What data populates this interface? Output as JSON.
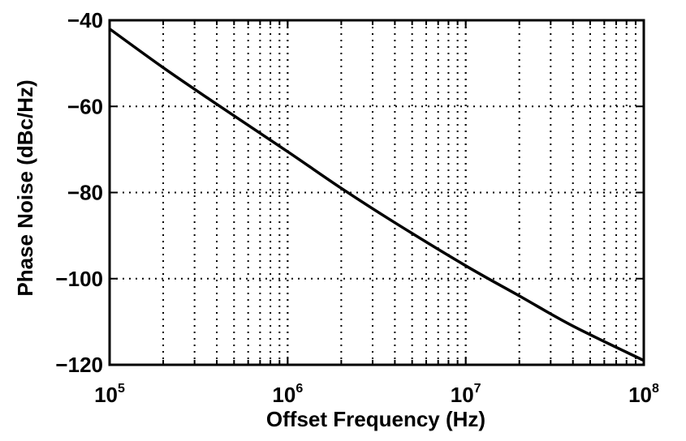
{
  "chart_data": {
    "type": "line",
    "title": "",
    "xlabel": "Offset Frequency (Hz)",
    "ylabel": "Phase Noise (dBc/Hz)",
    "x_scale": "log",
    "xlim": [
      100000,
      100000000
    ],
    "ylim": [
      -120,
      -40
    ],
    "grid": true,
    "x_ticks": [
      {
        "base": "10",
        "exp": "5",
        "value": 100000
      },
      {
        "base": "10",
        "exp": "6",
        "value": 1000000
      },
      {
        "base": "10",
        "exp": "7",
        "value": 10000000
      },
      {
        "base": "10",
        "exp": "8",
        "value": 100000000
      }
    ],
    "y_ticks": [
      {
        "label": "−40",
        "value": -40
      },
      {
        "label": "−60",
        "value": -60
      },
      {
        "label": "−80",
        "value": -80
      },
      {
        "label": "−100",
        "value": -100
      },
      {
        "label": "−120",
        "value": -120
      }
    ],
    "series": [
      {
        "x": [
          100000,
          200000,
          400000,
          1000000,
          2000000,
          4000000,
          10000000,
          20000000,
          40000000,
          100000000
        ],
        "y": [
          -42,
          -51,
          -59.5,
          -70.5,
          -79,
          -87,
          -97,
          -104,
          -111,
          -119
        ]
      }
    ]
  }
}
